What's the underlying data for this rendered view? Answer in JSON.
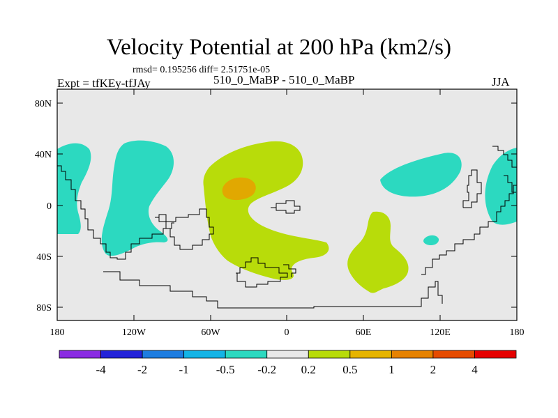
{
  "title": "Velocity Potential at 200 hPa (km2/s)",
  "stats": "rmsd= 0.195256 diff= 2.51751e-05",
  "left_label": "Expt = tfKEy-tfJAy",
  "center_label": "510_0_MaBP - 510_0_MaBP",
  "right_label": "JJA",
  "axes": {
    "lat_ticks": [
      "80N",
      "40N",
      "0",
      "40S",
      "80S"
    ],
    "lon_ticks": [
      "180",
      "120W",
      "60W",
      "0",
      "60E",
      "120E",
      "180"
    ]
  },
  "colorbar": {
    "colors": [
      "#8a2be2",
      "#2323d9",
      "#1e7de0",
      "#14b4e6",
      "#2cd9c0",
      "#e8e8e8",
      "#b8dc0a",
      "#e6b400",
      "#e68200",
      "#e64b00",
      "#e60000"
    ],
    "labels": [
      "-4",
      "-2",
      "-1",
      "-0.5",
      "-0.2",
      "0.2",
      "0.5",
      "1",
      "2",
      "4"
    ]
  },
  "fills": {
    "land_bg": "#e8e8e8",
    "neg_small": "#2cd9c0",
    "pos_small": "#b8dc0a",
    "pos_mid": "#e6a000"
  }
}
